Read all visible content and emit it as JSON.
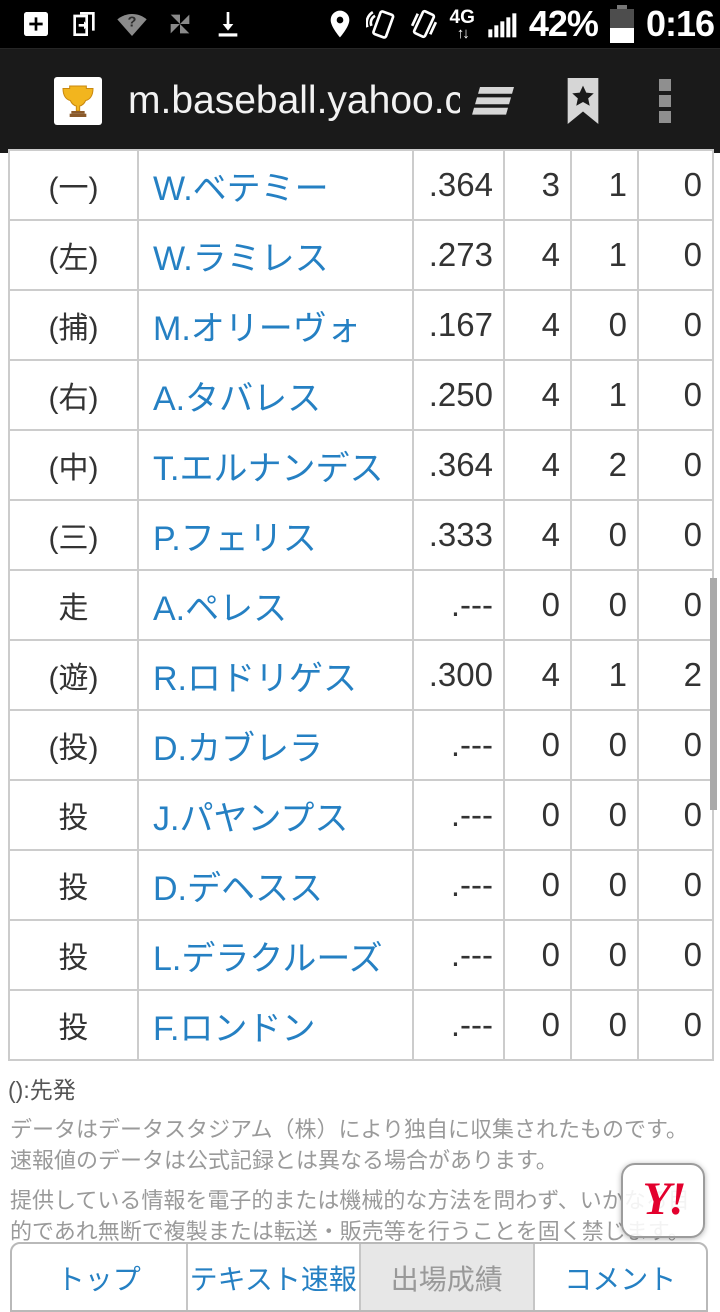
{
  "colors": {
    "link_blue": "#2580c3",
    "text_dark": "#333333",
    "border_gray": "#cccccc",
    "disclaimer_gray": "#9a9a9a",
    "nav_active_bg": "#e7e7e7",
    "yahoo_red": "#e3002d",
    "chrome_bg": "#1a1a1a"
  },
  "status_bar": {
    "network": "4G",
    "battery_percent": "42%",
    "time": "0:16",
    "icons": [
      "add-box-icon",
      "screen-pages-icon",
      "wifi-question-icon",
      "photo-sync-icon",
      "download-icon",
      "location-icon",
      "nfc-icon",
      "vibrate-icon",
      "signal-bars-icon",
      "battery-icon"
    ]
  },
  "browser": {
    "url": "m.baseball.yahoo.c",
    "favicon": "trophy-icon",
    "icons": [
      "tabs-icon",
      "bookmark-icon",
      "overflow-menu-icon"
    ]
  },
  "table": {
    "rows": [
      {
        "pos": "(一)",
        "name": "W.ベテミー",
        "stats": [
          ".364",
          "3",
          "1",
          "0"
        ]
      },
      {
        "pos": "(左)",
        "name": "W.ラミレス",
        "stats": [
          ".273",
          "4",
          "1",
          "0"
        ]
      },
      {
        "pos": "(捕)",
        "name": "M.オリーヴォ",
        "stats": [
          ".167",
          "4",
          "0",
          "0"
        ]
      },
      {
        "pos": "(右)",
        "name": "A.タバレス",
        "stats": [
          ".250",
          "4",
          "1",
          "0"
        ]
      },
      {
        "pos": "(中)",
        "name": "T.エルナンデス",
        "stats": [
          ".364",
          "4",
          "2",
          "0"
        ]
      },
      {
        "pos": "(三)",
        "name": "P.フェリス",
        "stats": [
          ".333",
          "4",
          "0",
          "0"
        ]
      },
      {
        "pos": "走",
        "name": "A.ペレス",
        "stats": [
          ".---",
          "0",
          "0",
          "0"
        ]
      },
      {
        "pos": "(遊)",
        "name": "R.ロドリゲス",
        "stats": [
          ".300",
          "4",
          "1",
          "2"
        ]
      },
      {
        "pos": "(投)",
        "name": "D.カブレラ",
        "stats": [
          ".---",
          "0",
          "0",
          "0"
        ]
      },
      {
        "pos": "投",
        "name": "J.パヤンプス",
        "stats": [
          ".---",
          "0",
          "0",
          "0"
        ]
      },
      {
        "pos": "投",
        "name": "D.デヘスス",
        "stats": [
          ".---",
          "0",
          "0",
          "0"
        ]
      },
      {
        "pos": "投",
        "name": "L.デラクルーズ",
        "stats": [
          ".---",
          "0",
          "0",
          "0"
        ]
      },
      {
        "pos": "投",
        "name": "F.ロンドン",
        "stats": [
          ".---",
          "0",
          "0",
          "0"
        ]
      }
    ]
  },
  "notes": {
    "legend": "():先発",
    "disclaimer1": "データはデータスタジアム（株）により独自に収集されたものです。速報値のデータは公式記録とは異なる場合があります。",
    "disclaimer2": "提供している情報を電子的または機械的な方法を問わず、いかなる目的であれ無断で複製または転送・販売等を行うことを固く禁じます。"
  },
  "promo": {
    "label": "Y!"
  },
  "footer_nav": {
    "items": [
      {
        "label": "トップ",
        "active": false
      },
      {
        "label": "テキスト速報",
        "active": false
      },
      {
        "label": "出場成績",
        "active": true
      },
      {
        "label": "コメント",
        "active": false
      }
    ]
  }
}
